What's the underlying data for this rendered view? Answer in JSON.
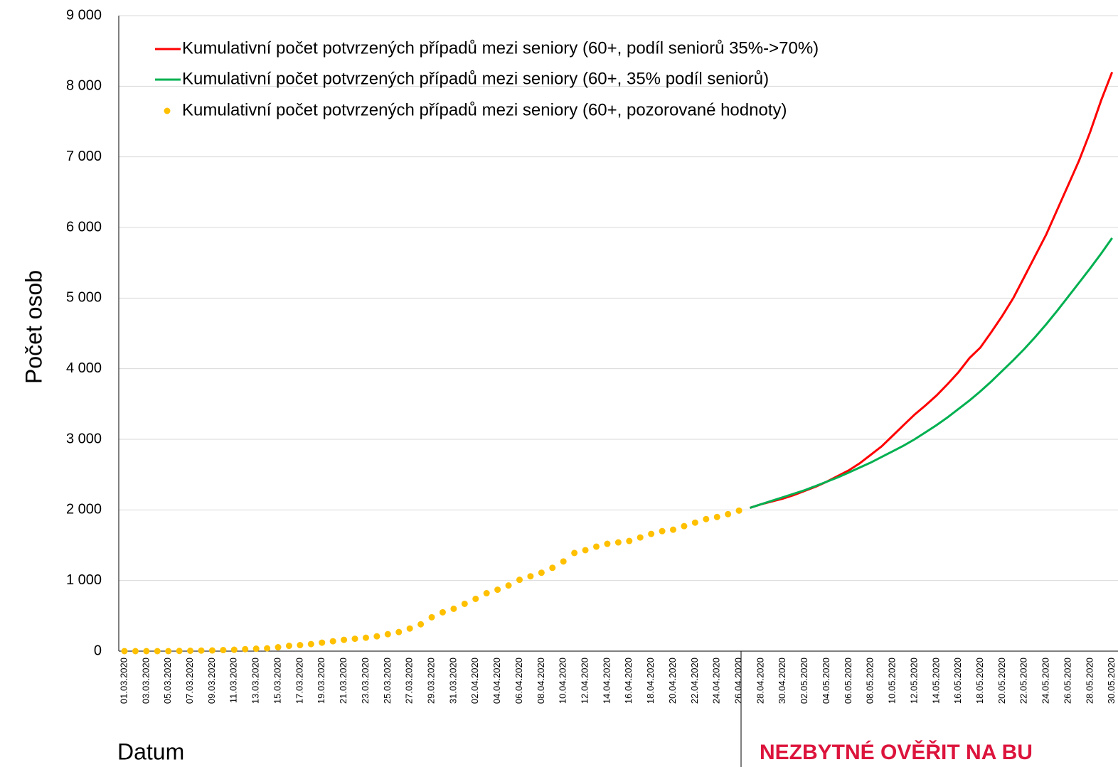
{
  "chart_data": {
    "type": "line",
    "ylabel": "Počet osob",
    "xlabel": "Datum",
    "annotation": "NEZBYTNÉ OVĚŘIT NA BU",
    "categories": [
      "01.03.2020",
      null,
      "03.03.2020",
      null,
      "05.03.2020",
      null,
      "07.03.2020",
      null,
      "09.03.2020",
      null,
      "11.03.2020",
      null,
      "13.03.2020",
      null,
      "15.03.2020",
      null,
      "17.03.2020",
      null,
      "19.03.2020",
      null,
      "21.03.2020",
      null,
      "23.03.2020",
      null,
      "25.03.2020",
      null,
      "27.03.2020",
      null,
      "29.03.2020",
      null,
      "31.03.2020",
      null,
      "02.04.2020",
      null,
      "04.04.2020",
      null,
      "06.04.2020",
      null,
      "08.04.2020",
      null,
      "10.04.2020",
      null,
      "12.04.2020",
      null,
      "14.04.2020",
      null,
      "16.04.2020",
      null,
      "18.04.2020",
      null,
      "20.04.2020",
      null,
      "22.04.2020",
      null,
      "24.04.2020",
      null,
      "26.04.2020",
      null,
      "28.04.2020",
      null,
      "30.04.2020",
      null,
      "02.05.2020",
      null,
      "04.05.2020",
      null,
      "06.05.2020",
      null,
      "08.05.2020",
      null,
      "10.05.2020",
      null,
      "12.05.2020",
      null,
      "14.05.2020",
      null,
      "16.05.2020",
      null,
      "18.05.2020",
      null,
      "20.05.2020",
      null,
      "22.05.2020",
      null,
      "24.05.2020",
      null,
      "26.05.2020",
      null,
      "28.05.2020",
      null,
      "30.05.2020"
    ],
    "series": [
      {
        "name": "Kumulativní počet potvrzených případů mezi seniory (60+, podíl seniorů 35%->70%)",
        "color": "#ff0000",
        "mode": "lines",
        "values": [
          null,
          null,
          null,
          null,
          null,
          null,
          null,
          null,
          null,
          null,
          null,
          null,
          null,
          null,
          null,
          null,
          null,
          null,
          null,
          null,
          null,
          null,
          null,
          null,
          null,
          null,
          null,
          null,
          null,
          null,
          null,
          null,
          null,
          null,
          null,
          null,
          null,
          null,
          null,
          null,
          null,
          null,
          null,
          null,
          null,
          null,
          null,
          null,
          null,
          null,
          null,
          null,
          null,
          null,
          null,
          null,
          null,
          2030,
          2080,
          2120,
          2160,
          2210,
          2270,
          2330,
          2400,
          2480,
          2560,
          2660,
          2780,
          2900,
          3050,
          3200,
          3350,
          3480,
          3620,
          3780,
          3950,
          4150,
          4300,
          4520,
          4750,
          5000,
          5300,
          5600,
          5900,
          6250,
          6600,
          6950,
          7350,
          7800,
          8200
        ]
      },
      {
        "name": "Kumulativní počet potvrzených případů mezi seniory (60+, 35% podíl seniorů)",
        "color": "#00b050",
        "mode": "lines",
        "values": [
          null,
          null,
          null,
          null,
          null,
          null,
          null,
          null,
          null,
          null,
          null,
          null,
          null,
          null,
          null,
          null,
          null,
          null,
          null,
          null,
          null,
          null,
          null,
          null,
          null,
          null,
          null,
          null,
          null,
          null,
          null,
          null,
          null,
          null,
          null,
          null,
          null,
          null,
          null,
          null,
          null,
          null,
          null,
          null,
          null,
          null,
          null,
          null,
          null,
          null,
          null,
          null,
          null,
          null,
          null,
          null,
          null,
          2030,
          2080,
          2130,
          2180,
          2230,
          2280,
          2340,
          2400,
          2460,
          2530,
          2600,
          2670,
          2750,
          2830,
          2910,
          3000,
          3100,
          3200,
          3310,
          3430,
          3550,
          3680,
          3820,
          3970,
          4120,
          4280,
          4450,
          4630,
          4820,
          5020,
          5220,
          5420,
          5630,
          5850
        ]
      },
      {
        "name": "Kumulativní počet potvrzených případů mezi seniory (60+, pozorované hodnoty)",
        "color": "#ffc000",
        "mode": "markers",
        "values": [
          0,
          0,
          0,
          0,
          0,
          3,
          5,
          8,
          10,
          15,
          20,
          28,
          35,
          40,
          55,
          75,
          85,
          100,
          120,
          140,
          160,
          175,
          190,
          210,
          240,
          270,
          320,
          380,
          480,
          550,
          600,
          670,
          740,
          820,
          870,
          930,
          1010,
          1060,
          1110,
          1180,
          1270,
          1390,
          1430,
          1480,
          1520,
          1540,
          1560,
          1610,
          1660,
          1700,
          1720,
          1770,
          1820,
          1870,
          1900,
          1940,
          1990,
          null,
          null,
          null,
          null,
          null,
          null,
          null,
          null,
          null,
          null,
          null,
          null,
          null,
          null,
          null,
          null,
          null,
          null,
          null,
          null,
          null,
          null,
          null,
          null,
          null,
          null,
          null,
          null,
          null,
          null,
          null,
          null,
          null,
          null
        ]
      }
    ],
    "ylim": [
      0,
      9000
    ],
    "yticks": [
      0,
      {
        "value": 1000,
        "label": "1 000"
      },
      {
        "value": 2000,
        "label": "2 000"
      },
      {
        "value": 3000,
        "label": "3 000"
      },
      {
        "value": 4000,
        "label": "4 000"
      },
      {
        "value": 5000,
        "label": "5 000"
      },
      {
        "value": 6000,
        "label": "6 000"
      },
      {
        "value": 7000,
        "label": "7 000"
      },
      {
        "value": 8000,
        "label": "8 000"
      },
      {
        "value": 9000,
        "label": "9 000"
      }
    ],
    "grid": true,
    "legend": "top-left"
  }
}
